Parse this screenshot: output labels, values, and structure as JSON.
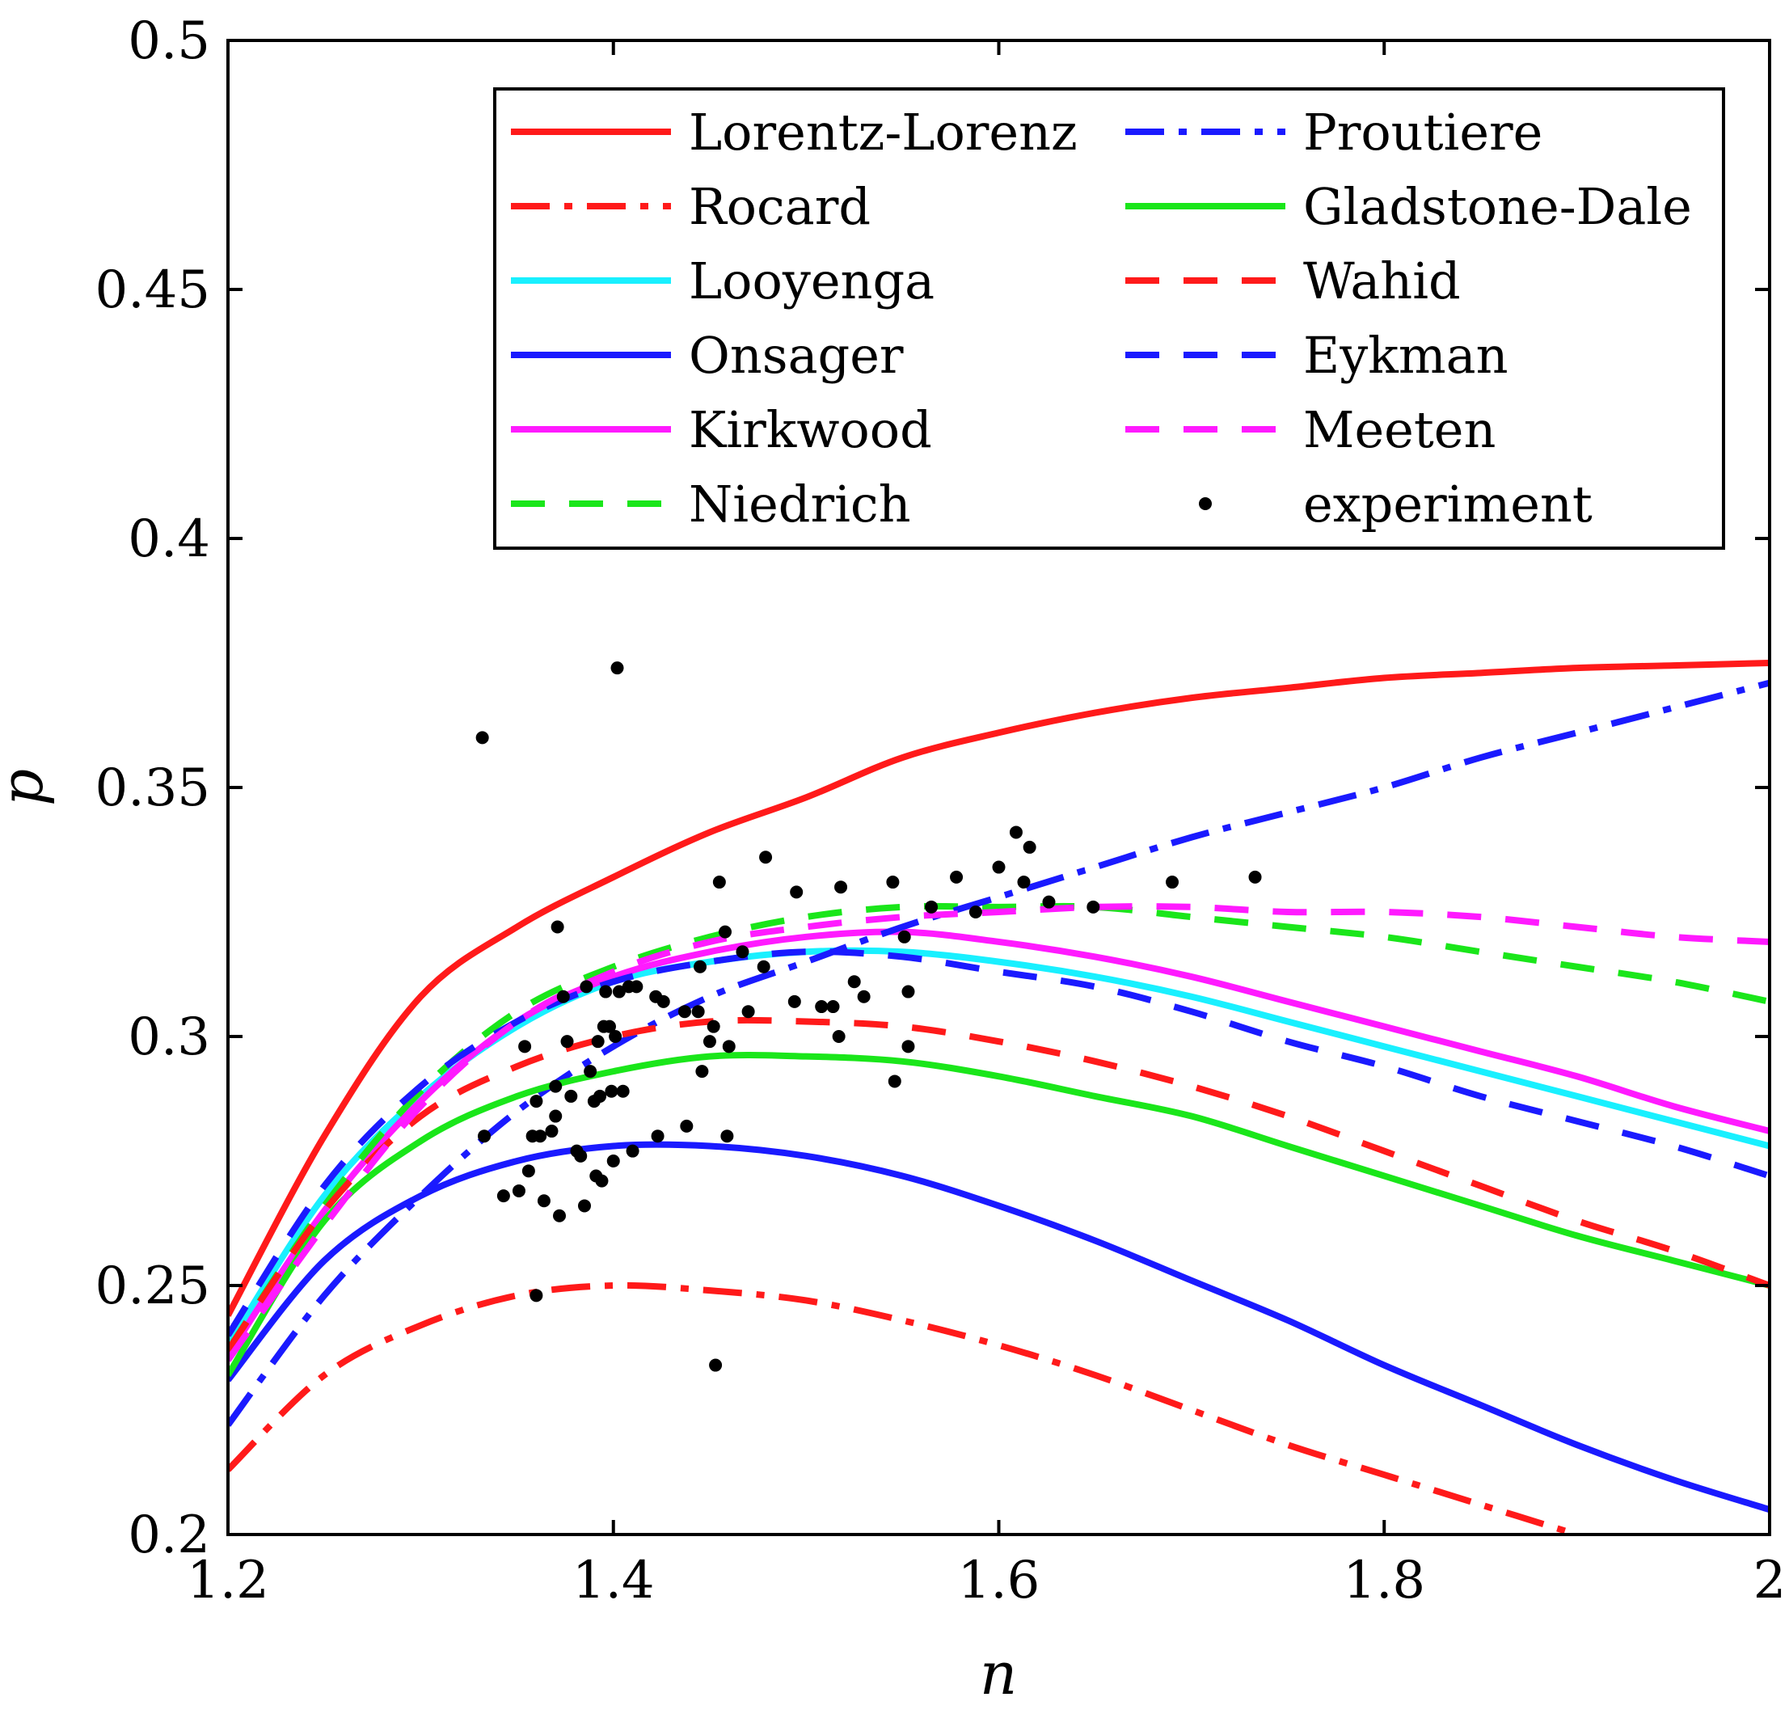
{
  "chart_data": {
    "type": "line",
    "xlabel": "n",
    "ylabel": "p",
    "xlim": [
      1.2,
      2.0
    ],
    "ylim": [
      0.2,
      0.5
    ],
    "xticks": [
      1.2,
      1.4,
      1.6,
      1.8,
      2.0
    ],
    "xtick_labels": [
      "1.2",
      "1.4",
      "1.6",
      "1.8",
      "2"
    ],
    "yticks": [
      0.2,
      0.25,
      0.3,
      0.35,
      0.4,
      0.45,
      0.5
    ],
    "ytick_labels": [
      "0.2",
      "0.25",
      "0.3",
      "0.35",
      "0.4",
      "0.45",
      "0.5"
    ],
    "grid": false,
    "legend": {
      "placement": "top-right",
      "columns": 2
    },
    "series": [
      {
        "name": "Lorentz-Lorenz",
        "color": "#ff1a1a",
        "style": "solid",
        "x": [
          1.2,
          1.25,
          1.3,
          1.35,
          1.4,
          1.45,
          1.5,
          1.55,
          1.6,
          1.65,
          1.7,
          1.75,
          1.8,
          1.85,
          1.9,
          1.95,
          2.0
        ],
        "y": [
          0.244,
          0.28,
          0.308,
          0.322,
          0.332,
          0.341,
          0.348,
          0.356,
          0.361,
          0.365,
          0.368,
          0.37,
          0.372,
          0.373,
          0.374,
          0.3745,
          0.375
        ]
      },
      {
        "name": "Rocard",
        "color": "#ff1a1a",
        "style": "dashdot",
        "x": [
          1.2,
          1.25,
          1.3,
          1.35,
          1.4,
          1.45,
          1.5,
          1.55,
          1.6,
          1.65,
          1.7,
          1.75,
          1.8,
          1.85,
          1.9
        ],
        "y": [
          0.213,
          0.232,
          0.242,
          0.248,
          0.25,
          0.249,
          0.247,
          0.243,
          0.238,
          0.232,
          0.225,
          0.218,
          0.212,
          0.206,
          0.2
        ]
      },
      {
        "name": "Looyenga",
        "color": "#19f0ff",
        "style": "solid",
        "x": [
          1.2,
          1.25,
          1.3,
          1.35,
          1.4,
          1.45,
          1.5,
          1.55,
          1.6,
          1.65,
          1.7,
          1.75,
          1.8,
          1.85,
          1.9,
          1.95,
          2.0
        ],
        "y": [
          0.238,
          0.268,
          0.288,
          0.302,
          0.311,
          0.315,
          0.317,
          0.317,
          0.315,
          0.312,
          0.308,
          0.303,
          0.298,
          0.293,
          0.288,
          0.283,
          0.278
        ]
      },
      {
        "name": "Onsager",
        "color": "#1a1aff",
        "style": "solid",
        "x": [
          1.2,
          1.25,
          1.3,
          1.35,
          1.4,
          1.45,
          1.5,
          1.55,
          1.6,
          1.65,
          1.7,
          1.75,
          1.8,
          1.85,
          1.9,
          1.95,
          2.0
        ],
        "y": [
          0.231,
          0.255,
          0.268,
          0.275,
          0.278,
          0.278,
          0.276,
          0.272,
          0.266,
          0.259,
          0.251,
          0.243,
          0.234,
          0.226,
          0.218,
          0.211,
          0.205
        ]
      },
      {
        "name": "Kirkwood",
        "color": "#ff1aff",
        "style": "solid",
        "x": [
          1.2,
          1.25,
          1.3,
          1.35,
          1.4,
          1.45,
          1.5,
          1.55,
          1.6,
          1.65,
          1.7,
          1.75,
          1.8,
          1.85,
          1.9,
          1.95,
          2.0
        ],
        "y": [
          0.236,
          0.265,
          0.287,
          0.303,
          0.312,
          0.317,
          0.32,
          0.321,
          0.319,
          0.316,
          0.312,
          0.307,
          0.302,
          0.297,
          0.292,
          0.286,
          0.281
        ]
      },
      {
        "name": "Niedrich",
        "color": "#1ae61a",
        "style": "dashed",
        "x": [
          1.2,
          1.25,
          1.3,
          1.35,
          1.4,
          1.45,
          1.5,
          1.55,
          1.6,
          1.65,
          1.7,
          1.75,
          1.8,
          1.85,
          1.9,
          1.95,
          2.0
        ],
        "y": [
          0.237,
          0.266,
          0.289,
          0.305,
          0.314,
          0.32,
          0.324,
          0.326,
          0.326,
          0.326,
          0.324,
          0.322,
          0.32,
          0.317,
          0.314,
          0.311,
          0.307
        ]
      },
      {
        "name": "Proutiere",
        "color": "#1a1aff",
        "style": "dashdot",
        "x": [
          1.2,
          1.25,
          1.3,
          1.35,
          1.4,
          1.45,
          1.5,
          1.55,
          1.6,
          1.65,
          1.7,
          1.75,
          1.8,
          1.85,
          1.9,
          1.95,
          2.0
        ],
        "y": [
          0.222,
          0.248,
          0.268,
          0.285,
          0.298,
          0.308,
          0.315,
          0.322,
          0.328,
          0.334,
          0.34,
          0.345,
          0.35,
          0.356,
          0.361,
          0.366,
          0.371
        ]
      },
      {
        "name": "Gladstone-Dale",
        "color": "#1ae61a",
        "style": "solid",
        "x": [
          1.2,
          1.25,
          1.3,
          1.35,
          1.4,
          1.45,
          1.5,
          1.55,
          1.6,
          1.65,
          1.7,
          1.75,
          1.8,
          1.85,
          1.9,
          1.95,
          2.0
        ],
        "y": [
          0.232,
          0.263,
          0.279,
          0.288,
          0.293,
          0.296,
          0.296,
          0.295,
          0.292,
          0.288,
          0.284,
          0.278,
          0.272,
          0.266,
          0.26,
          0.255,
          0.25
        ]
      },
      {
        "name": "Wahid",
        "color": "#ff1a1a",
        "style": "dashed",
        "x": [
          1.2,
          1.25,
          1.3,
          1.35,
          1.4,
          1.45,
          1.5,
          1.55,
          1.6,
          1.65,
          1.7,
          1.75,
          1.8,
          1.85,
          1.9,
          1.95,
          2.0
        ],
        "y": [
          0.237,
          0.265,
          0.284,
          0.294,
          0.3,
          0.303,
          0.303,
          0.302,
          0.299,
          0.295,
          0.29,
          0.284,
          0.277,
          0.27,
          0.263,
          0.257,
          0.25
        ]
      },
      {
        "name": "Eykman",
        "color": "#1a1aff",
        "style": "dashed",
        "x": [
          1.2,
          1.25,
          1.3,
          1.35,
          1.4,
          1.45,
          1.5,
          1.55,
          1.6,
          1.65,
          1.7,
          1.75,
          1.8,
          1.85,
          1.9,
          1.95,
          2.0
        ],
        "y": [
          0.24,
          0.27,
          0.29,
          0.303,
          0.311,
          0.315,
          0.317,
          0.316,
          0.313,
          0.31,
          0.305,
          0.299,
          0.294,
          0.288,
          0.283,
          0.278,
          0.272
        ]
      },
      {
        "name": "Meeten",
        "color": "#ff1aff",
        "style": "dashed",
        "x": [
          1.2,
          1.25,
          1.3,
          1.35,
          1.4,
          1.45,
          1.5,
          1.55,
          1.6,
          1.65,
          1.7,
          1.75,
          1.8,
          1.85,
          1.9,
          1.95,
          2.0
        ],
        "y": [
          0.235,
          0.262,
          0.286,
          0.303,
          0.313,
          0.319,
          0.322,
          0.324,
          0.325,
          0.326,
          0.326,
          0.325,
          0.325,
          0.324,
          0.322,
          0.32,
          0.319
        ]
      }
    ],
    "experiment": {
      "name": "experiment",
      "color": "#000000",
      "points": [
        [
          1.332,
          0.36
        ],
        [
          1.402,
          0.374
        ],
        [
          1.371,
          0.322
        ],
        [
          1.333,
          0.28
        ],
        [
          1.343,
          0.268
        ],
        [
          1.351,
          0.269
        ],
        [
          1.354,
          0.298
        ],
        [
          1.356,
          0.273
        ],
        [
          1.358,
          0.28
        ],
        [
          1.36,
          0.287
        ],
        [
          1.362,
          0.28
        ],
        [
          1.364,
          0.267
        ],
        [
          1.368,
          0.281
        ],
        [
          1.37,
          0.29
        ],
        [
          1.37,
          0.284
        ],
        [
          1.372,
          0.264
        ],
        [
          1.374,
          0.308
        ],
        [
          1.376,
          0.299
        ],
        [
          1.378,
          0.288
        ],
        [
          1.381,
          0.277
        ],
        [
          1.383,
          0.276
        ],
        [
          1.385,
          0.266
        ],
        [
          1.386,
          0.31
        ],
        [
          1.388,
          0.293
        ],
        [
          1.39,
          0.287
        ],
        [
          1.391,
          0.272
        ],
        [
          1.392,
          0.299
        ],
        [
          1.393,
          0.288
        ],
        [
          1.394,
          0.271
        ],
        [
          1.395,
          0.302
        ],
        [
          1.396,
          0.309
        ],
        [
          1.398,
          0.302
        ],
        [
          1.399,
          0.289
        ],
        [
          1.4,
          0.275
        ],
        [
          1.401,
          0.3
        ],
        [
          1.403,
          0.309
        ],
        [
          1.405,
          0.289
        ],
        [
          1.408,
          0.31
        ],
        [
          1.41,
          0.277
        ],
        [
          1.412,
          0.31
        ],
        [
          1.422,
          0.308
        ],
        [
          1.423,
          0.28
        ],
        [
          1.426,
          0.307
        ],
        [
          1.437,
          0.305
        ],
        [
          1.438,
          0.282
        ],
        [
          1.444,
          0.305
        ],
        [
          1.445,
          0.314
        ],
        [
          1.446,
          0.293
        ],
        [
          1.45,
          0.299
        ],
        [
          1.452,
          0.302
        ],
        [
          1.453,
          0.234
        ],
        [
          1.455,
          0.331
        ],
        [
          1.458,
          0.321
        ],
        [
          1.459,
          0.28
        ],
        [
          1.46,
          0.298
        ],
        [
          1.467,
          0.317
        ],
        [
          1.47,
          0.305
        ],
        [
          1.478,
          0.314
        ],
        [
          1.479,
          0.336
        ],
        [
          1.494,
          0.307
        ],
        [
          1.495,
          0.329
        ],
        [
          1.508,
          0.306
        ],
        [
          1.514,
          0.306
        ],
        [
          1.517,
          0.3
        ],
        [
          1.518,
          0.33
        ],
        [
          1.525,
          0.311
        ],
        [
          1.53,
          0.308
        ],
        [
          1.545,
          0.331
        ],
        [
          1.546,
          0.291
        ],
        [
          1.551,
          0.32
        ],
        [
          1.553,
          0.298
        ],
        [
          1.553,
          0.309
        ],
        [
          1.565,
          0.326
        ],
        [
          1.578,
          0.332
        ],
        [
          1.588,
          0.325
        ],
        [
          1.6,
          0.334
        ],
        [
          1.609,
          0.341
        ],
        [
          1.613,
          0.331
        ],
        [
          1.616,
          0.338
        ],
        [
          1.626,
          0.327
        ],
        [
          1.649,
          0.326
        ],
        [
          1.69,
          0.331
        ],
        [
          1.733,
          0.332
        ],
        [
          1.36,
          0.248
        ]
      ]
    }
  }
}
